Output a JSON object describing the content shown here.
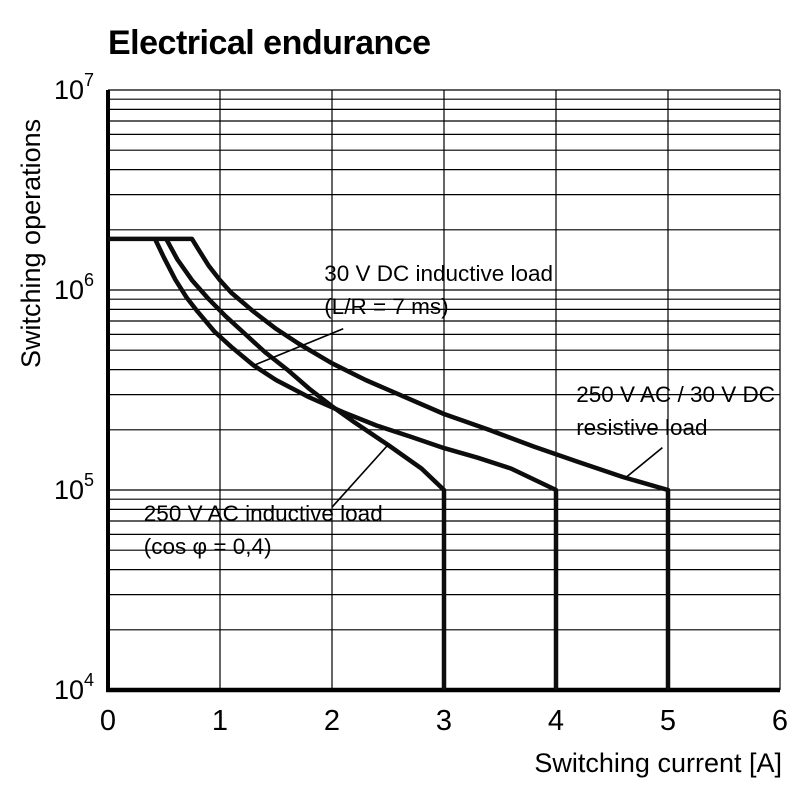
{
  "title": "Electrical endurance",
  "chart_data": {
    "type": "line",
    "title": "Electrical endurance",
    "xlabel": "Switching current [A]",
    "ylabel": "Switching operations",
    "y_scale": "log",
    "xlim": [
      0,
      6
    ],
    "ylim": [
      10000,
      10000000
    ],
    "x_ticks": [
      0,
      1,
      2,
      3,
      4,
      5,
      6
    ],
    "y_ticks": [
      {
        "value": 10000000,
        "label": "10",
        "exponent": "7"
      },
      {
        "value": 1000000,
        "label": "10",
        "exponent": "6"
      },
      {
        "value": 100000,
        "label": "10",
        "exponent": "5"
      },
      {
        "value": 10000,
        "label": "10",
        "exponent": "4"
      }
    ],
    "grid": {
      "horizontal": "log-minor",
      "vertical": "integer",
      "color": "#000000"
    },
    "line_color": "#0d0d0d",
    "legend": "none (curves labeled by annotations with leader lines)",
    "series": [
      {
        "id": "resistive",
        "name": "250 V AC / 30 V DC resistive load",
        "max_current_a": 5,
        "points": [
          [
            0,
            1800000
          ],
          [
            0.75,
            1800000
          ],
          [
            0.8,
            1620000
          ],
          [
            0.9,
            1320000
          ],
          [
            1.0,
            1120000
          ],
          [
            1.1,
            970000
          ],
          [
            1.3,
            780000
          ],
          [
            1.5,
            640000
          ],
          [
            1.7,
            540000
          ],
          [
            2.0,
            430000
          ],
          [
            2.3,
            355000
          ],
          [
            2.6,
            300000
          ],
          [
            3.0,
            240000
          ],
          [
            3.4,
            200000
          ],
          [
            3.8,
            165000
          ],
          [
            4.2,
            138000
          ],
          [
            4.6,
            116000
          ],
          [
            5.0,
            100000
          ],
          [
            5.0,
            10000
          ]
        ]
      },
      {
        "id": "dc-inductive",
        "name": "30 V DC inductive load (L/R = 7 ms)",
        "max_current_a": 4,
        "points": [
          [
            0.42,
            1800000
          ],
          [
            0.5,
            1450000
          ],
          [
            0.6,
            1130000
          ],
          [
            0.7,
            920000
          ],
          [
            0.8,
            780000
          ],
          [
            0.95,
            620000
          ],
          [
            1.1,
            520000
          ],
          [
            1.3,
            420000
          ],
          [
            1.5,
            355000
          ],
          [
            1.8,
            290000
          ],
          [
            2.1,
            245000
          ],
          [
            2.4,
            210000
          ],
          [
            2.7,
            185000
          ],
          [
            3.0,
            162000
          ],
          [
            3.3,
            145000
          ],
          [
            3.6,
            128000
          ],
          [
            4.0,
            100000
          ],
          [
            4.0,
            10000
          ]
        ]
      },
      {
        "id": "ac-inductive",
        "name": "250 V AC inductive load (cos φ = 0,4)",
        "max_current_a": 3,
        "points": [
          [
            0.52,
            1800000
          ],
          [
            0.62,
            1420000
          ],
          [
            0.75,
            1120000
          ],
          [
            0.9,
            900000
          ],
          [
            1.05,
            740000
          ],
          [
            1.2,
            620000
          ],
          [
            1.4,
            490000
          ],
          [
            1.6,
            400000
          ],
          [
            1.8,
            320000
          ],
          [
            2.0,
            262000
          ],
          [
            2.2,
            218000
          ],
          [
            2.5,
            168000
          ],
          [
            2.8,
            128000
          ],
          [
            3.0,
            100000
          ],
          [
            3.0,
            10000
          ]
        ]
      }
    ],
    "annotations": [
      {
        "name": "annotation-dc-inductive",
        "lines": [
          "30 V DC inductive load",
          "(L/R = 7 ms)"
        ],
        "text_at": [
          1.93,
          1110000
        ],
        "leader": {
          "from": [
            2.1,
            640000
          ],
          "to": [
            1.3,
            420000
          ]
        }
      },
      {
        "name": "annotation-resistive",
        "lines": [
          "250 V AC / 30 V DC",
          "resistive load"
        ],
        "text_at": [
          4.18,
          275000
        ],
        "leader": {
          "from": [
            4.95,
            163000
          ],
          "to": [
            4.62,
            115000
          ]
        }
      },
      {
        "name": "annotation-ac-inductive",
        "lines": [
          "250 V AC inductive load",
          "(cos φ = 0,4)"
        ],
        "text_at": [
          0.32,
          70000
        ],
        "leader": {
          "from": [
            2.0,
            82000
          ],
          "to": [
            2.5,
            168000
          ]
        }
      }
    ]
  }
}
